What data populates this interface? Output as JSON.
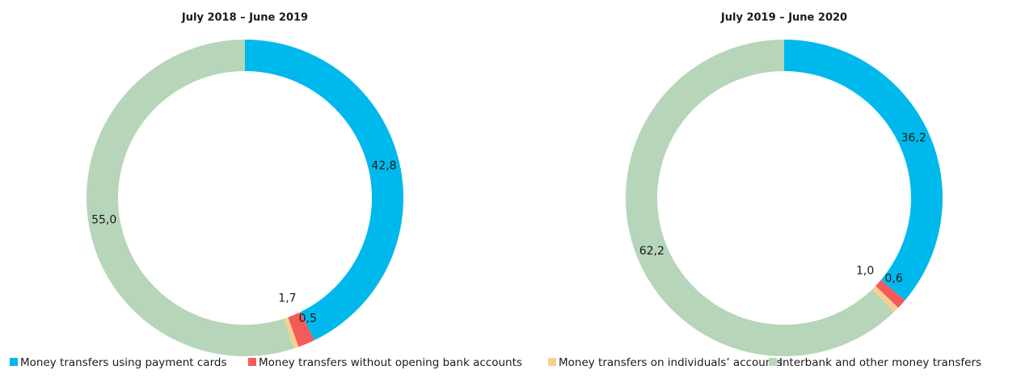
{
  "chart_data": [
    {
      "type": "pie",
      "title": "July 2018 – June 2019",
      "values": [
        42.8,
        1.7,
        0.5,
        55.0
      ],
      "value_labels": [
        "42,8",
        "1,7",
        "0,5",
        "55,0"
      ]
    },
    {
      "type": "pie",
      "title": "July 2019 – June 2020",
      "values": [
        36.2,
        1.0,
        0.6,
        62.2
      ],
      "value_labels": [
        "36,2",
        "1,0",
        "0,6",
        "62,2"
      ]
    }
  ],
  "legend": {
    "labels": [
      "Money transfers using payment cards",
      "Money transfers without opening bank accounts",
      "Money transfers on individuals’ accounts",
      "Interbank and other money transfers"
    ],
    "colors": [
      "#00b9ec",
      "#f55a5a",
      "#f7cf8e",
      "#b7d5b9"
    ]
  }
}
